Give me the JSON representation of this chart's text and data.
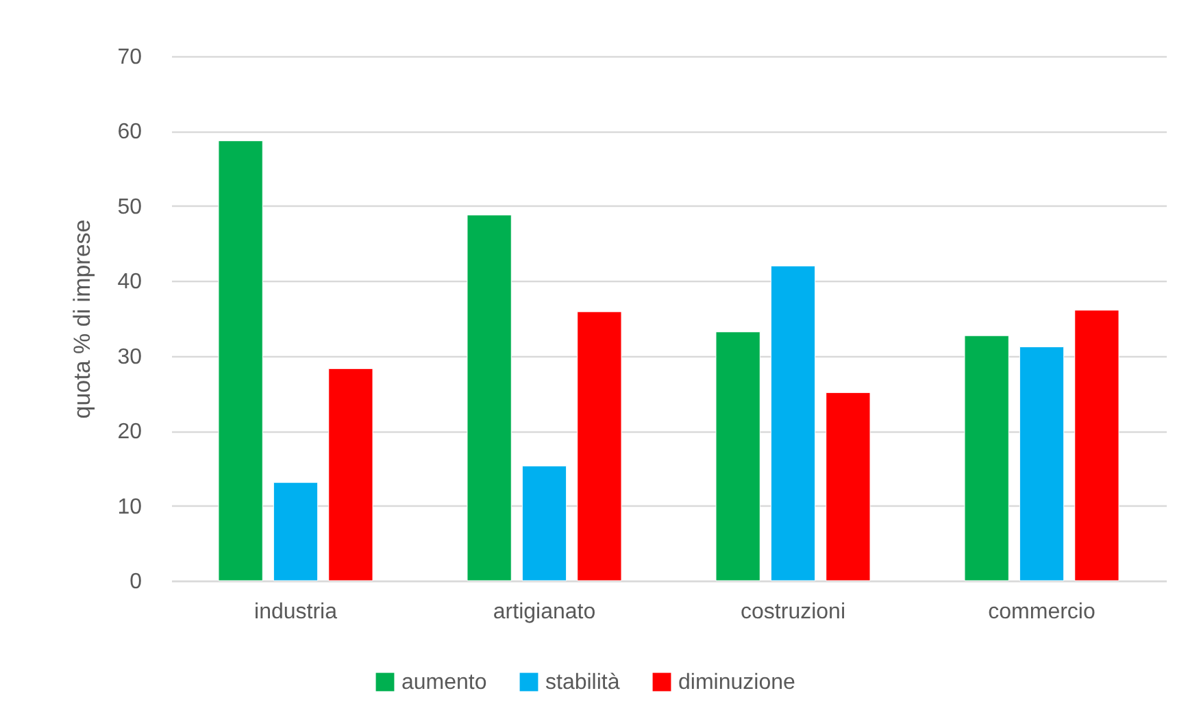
{
  "chart_data": {
    "type": "bar",
    "ylabel": "quota % di imprese",
    "categories": [
      "industria",
      "artigianato",
      "costruzioni",
      "commercio"
    ],
    "series": [
      {
        "name": "aumento",
        "color": "#00b050",
        "values": [
          58.7,
          48.8,
          33.2,
          32.7
        ]
      },
      {
        "name": "stabilità",
        "color": "#00b0f0",
        "values": [
          13.1,
          15.3,
          42.0,
          31.2
        ]
      },
      {
        "name": "diminuzione",
        "color": "#ff0000",
        "values": [
          28.3,
          35.9,
          25.1,
          36.1
        ]
      }
    ],
    "ylim": [
      0,
      70
    ],
    "yticks": [
      0,
      10,
      20,
      30,
      40,
      50,
      60,
      70
    ],
    "grid": "y",
    "legend": "bottom"
  }
}
